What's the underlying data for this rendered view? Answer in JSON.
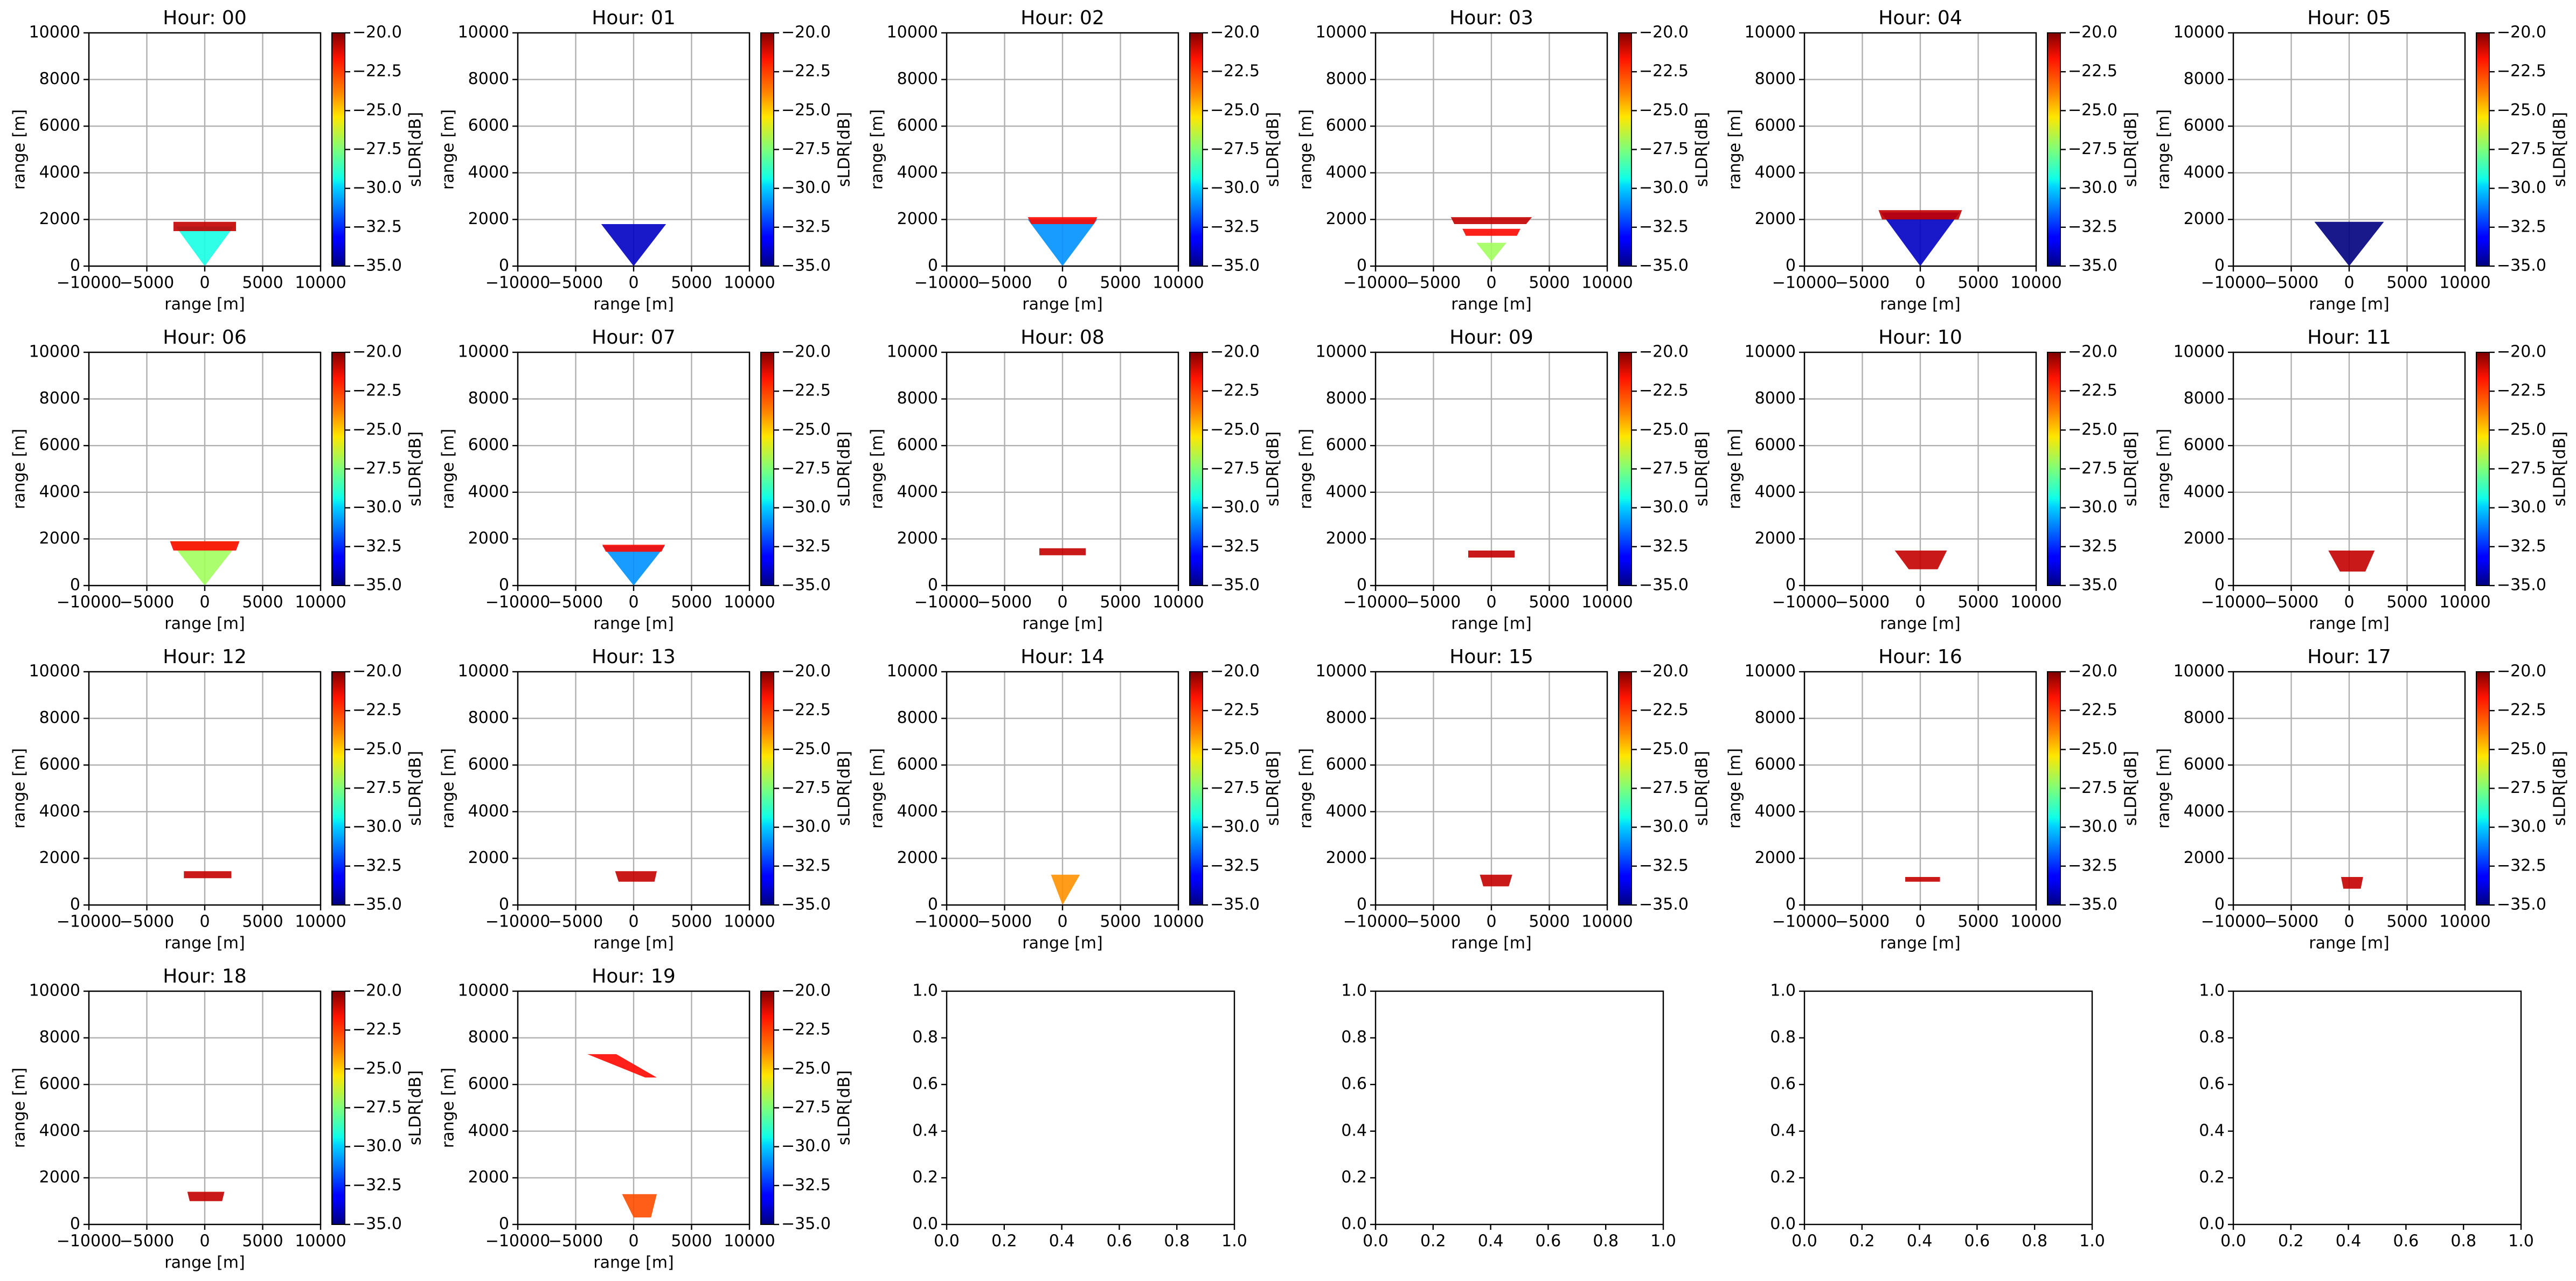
{
  "chart_data": {
    "type": "scan-grid",
    "xlabel": "range [m]",
    "ylabel": "range [m]",
    "colorbar_label": "sLDR[dB]",
    "colormap": "jet",
    "grid": true,
    "xlim": [
      -10000,
      10000
    ],
    "ylim": [
      0,
      10000
    ],
    "xticks": [
      {
        "value": -10000,
        "label": "−10000"
      },
      {
        "value": -5000,
        "label": "−5000"
      },
      0,
      5000,
      10000
    ],
    "yticks": [
      0,
      2000,
      4000,
      6000,
      8000,
      10000
    ],
    "clim": [
      -35,
      -20
    ],
    "cticks": [
      {
        "value": -20,
        "label": "−20.0"
      },
      {
        "value": -22.5,
        "label": "−22.5"
      },
      {
        "value": -25,
        "label": "−25.0"
      },
      {
        "value": -27.5,
        "label": "−27.5"
      },
      {
        "value": -30,
        "label": "−30.0"
      },
      {
        "value": -32.5,
        "label": "−32.5"
      },
      {
        "value": -35,
        "label": "−35.0"
      }
    ],
    "panels": [
      {
        "title": "Hour: 00",
        "patches": [
          {
            "x": [
              -2500,
              2500,
              0
            ],
            "y": [
              1700,
              1700,
              0
            ],
            "value": -29
          },
          {
            "x": [
              -2700,
              2700,
              2700,
              -2700
            ],
            "y": [
              1500,
              1500,
              1900,
              1900
            ],
            "value": -21
          }
        ]
      },
      {
        "title": "Hour: 01",
        "patches": [
          {
            "x": [
              -2800,
              2800,
              0
            ],
            "y": [
              1800,
              1800,
              0
            ],
            "value": -34
          }
        ]
      },
      {
        "title": "Hour: 02",
        "patches": [
          {
            "x": [
              -3000,
              3000,
              0
            ],
            "y": [
              2000,
              2000,
              0
            ],
            "value": -31
          },
          {
            "x": [
              -3000,
              3000,
              2700,
              -2700
            ],
            "y": [
              2100,
              2100,
              1800,
              1800
            ],
            "value": -22
          }
        ]
      },
      {
        "title": "Hour: 03",
        "patches": [
          {
            "x": [
              -3500,
              3500,
              3000,
              -3200
            ],
            "y": [
              2100,
              2100,
              1800,
              1800
            ],
            "value": -21
          },
          {
            "x": [
              -2500,
              2500,
              2200,
              -2200
            ],
            "y": [
              1600,
              1600,
              1300,
              1300
            ],
            "value": -22
          },
          {
            "x": [
              -1300,
              1300,
              0
            ],
            "y": [
              1000,
              1000,
              200
            ],
            "value": -27
          }
        ]
      },
      {
        "title": "Hour: 04",
        "patches": [
          {
            "x": [
              -3400,
              3400,
              0
            ],
            "y": [
              2300,
              2300,
              0
            ],
            "value": -34
          },
          {
            "x": [
              -3600,
              3600,
              3300,
              -3300
            ],
            "y": [
              2400,
              2400,
              2000,
              2000
            ],
            "value": -21
          }
        ]
      },
      {
        "title": "Hour: 05",
        "patches": [
          {
            "x": [
              -3000,
              3000,
              0
            ],
            "y": [
              1900,
              1900,
              0
            ],
            "value": -35
          }
        ]
      },
      {
        "title": "Hour: 06",
        "patches": [
          {
            "x": [
              -3000,
              3000,
              0
            ],
            "y": [
              1900,
              1900,
              0
            ],
            "value": -27
          },
          {
            "x": [
              -3000,
              3000,
              2700,
              -2700
            ],
            "y": [
              1900,
              1900,
              1500,
              1500
            ],
            "value": -22
          }
        ]
      },
      {
        "title": "Hour: 07",
        "patches": [
          {
            "x": [
              -2700,
              2700,
              0
            ],
            "y": [
              1700,
              1700,
              0
            ],
            "value": -31
          },
          {
            "x": [
              -2700,
              2700,
              2400,
              -2400
            ],
            "y": [
              1750,
              1750,
              1450,
              1450
            ],
            "value": -22
          }
        ]
      },
      {
        "title": "Hour: 08",
        "patches": [
          {
            "x": [
              -2000,
              2000,
              2000,
              -2000
            ],
            "y": [
              1300,
              1300,
              1600,
              1600
            ],
            "value": -21
          }
        ]
      },
      {
        "title": "Hour: 09",
        "patches": [
          {
            "x": [
              -2000,
              2000,
              2000,
              -2000
            ],
            "y": [
              1200,
              1200,
              1500,
              1500
            ],
            "value": -21
          }
        ]
      },
      {
        "title": "Hour: 10",
        "patches": [
          {
            "x": [
              -2200,
              2300,
              1500,
              -1000
            ],
            "y": [
              1500,
              1500,
              700,
              700
            ],
            "value": -21
          }
        ]
      },
      {
        "title": "Hour: 11",
        "patches": [
          {
            "x": [
              -1800,
              2200,
              1400,
              -800
            ],
            "y": [
              1500,
              1500,
              600,
              600
            ],
            "value": -21
          }
        ]
      },
      {
        "title": "Hour: 12",
        "patches": [
          {
            "x": [
              -1800,
              2300,
              2300,
              -1800
            ],
            "y": [
              1150,
              1150,
              1450,
              1450
            ],
            "value": -21
          }
        ]
      },
      {
        "title": "Hour: 13",
        "patches": [
          {
            "x": [
              -1600,
              2000,
              1800,
              -1300
            ],
            "y": [
              1450,
              1450,
              1000,
              1000
            ],
            "value": -21
          }
        ]
      },
      {
        "title": "Hour: 14",
        "patches": [
          {
            "x": [
              -1000,
              1500,
              0
            ],
            "y": [
              1300,
              1300,
              0
            ],
            "value": -24
          }
        ]
      },
      {
        "title": "Hour: 15",
        "patches": [
          {
            "x": [
              -1000,
              1800,
              1500,
              -700
            ],
            "y": [
              1300,
              1300,
              800,
              800
            ],
            "value": -21
          }
        ]
      },
      {
        "title": "Hour: 16",
        "patches": [
          {
            "x": [
              -1300,
              1700,
              1700,
              -1300
            ],
            "y": [
              1000,
              1000,
              1200,
              1200
            ],
            "value": -21
          }
        ]
      },
      {
        "title": "Hour: 17",
        "patches": [
          {
            "x": [
              -700,
              1200,
              1000,
              -500
            ],
            "y": [
              1200,
              1200,
              700,
              700
            ],
            "value": -21
          }
        ]
      },
      {
        "title": "Hour: 18",
        "patches": [
          {
            "x": [
              -1500,
              1700,
              1500,
              -1300
            ],
            "y": [
              1400,
              1400,
              1000,
              1000
            ],
            "value": -21
          }
        ]
      },
      {
        "title": "Hour: 19",
        "patches": [
          {
            "x": [
              -4000,
              -1500,
              2000,
              1000
            ],
            "y": [
              7300,
              7300,
              6300,
              6300
            ],
            "value": -22
          },
          {
            "x": [
              -1000,
              2000,
              1500,
              0
            ],
            "y": [
              1300,
              1300,
              300,
              300
            ],
            "value": -23
          }
        ]
      }
    ],
    "empty_panels": [
      {
        "xlim": [
          0,
          1
        ],
        "ylim": [
          0,
          1
        ],
        "xticks": [
          {
            "value": 0,
            "label": "0.0"
          },
          {
            "value": 0.2,
            "label": "0.2"
          },
          {
            "value": 0.4,
            "label": "0.4"
          },
          {
            "value": 0.6,
            "label": "0.6"
          },
          {
            "value": 0.8,
            "label": "0.8"
          },
          {
            "value": 1,
            "label": "1.0"
          }
        ],
        "yticks": [
          {
            "value": 0,
            "label": "0.0"
          },
          {
            "value": 0.2,
            "label": "0.2"
          },
          {
            "value": 0.4,
            "label": "0.4"
          },
          {
            "value": 0.6,
            "label": "0.6"
          },
          {
            "value": 0.8,
            "label": "0.8"
          },
          {
            "value": 1,
            "label": "1.0"
          }
        ]
      },
      {
        "xlim": [
          0,
          1
        ],
        "ylim": [
          0,
          1
        ],
        "xticks": [
          {
            "value": 0,
            "label": "0.0"
          },
          {
            "value": 0.2,
            "label": "0.2"
          },
          {
            "value": 0.4,
            "label": "0.4"
          },
          {
            "value": 0.6,
            "label": "0.6"
          },
          {
            "value": 0.8,
            "label": "0.8"
          },
          {
            "value": 1,
            "label": "1.0"
          }
        ],
        "yticks": [
          {
            "value": 0,
            "label": "0.0"
          },
          {
            "value": 0.2,
            "label": "0.2"
          },
          {
            "value": 0.4,
            "label": "0.4"
          },
          {
            "value": 0.6,
            "label": "0.6"
          },
          {
            "value": 0.8,
            "label": "0.8"
          },
          {
            "value": 1,
            "label": "1.0"
          }
        ]
      },
      {
        "xlim": [
          0,
          1
        ],
        "ylim": [
          0,
          1
        ],
        "xticks": [
          {
            "value": 0,
            "label": "0.0"
          },
          {
            "value": 0.2,
            "label": "0.2"
          },
          {
            "value": 0.4,
            "label": "0.4"
          },
          {
            "value": 0.6,
            "label": "0.6"
          },
          {
            "value": 0.8,
            "label": "0.8"
          },
          {
            "value": 1,
            "label": "1.0"
          }
        ],
        "yticks": [
          {
            "value": 0,
            "label": "0.0"
          },
          {
            "value": 0.2,
            "label": "0.2"
          },
          {
            "value": 0.4,
            "label": "0.4"
          },
          {
            "value": 0.6,
            "label": "0.6"
          },
          {
            "value": 0.8,
            "label": "0.8"
          },
          {
            "value": 1,
            "label": "1.0"
          }
        ]
      },
      {
        "xlim": [
          0,
          1
        ],
        "ylim": [
          0,
          1
        ],
        "xticks": [
          {
            "value": 0,
            "label": "0.0"
          },
          {
            "value": 0.2,
            "label": "0.2"
          },
          {
            "value": 0.4,
            "label": "0.4"
          },
          {
            "value": 0.6,
            "label": "0.6"
          },
          {
            "value": 0.8,
            "label": "0.8"
          },
          {
            "value": 1,
            "label": "1.0"
          }
        ],
        "yticks": [
          {
            "value": 0,
            "label": "0.0"
          },
          {
            "value": 0.2,
            "label": "0.2"
          },
          {
            "value": 0.4,
            "label": "0.4"
          },
          {
            "value": 0.6,
            "label": "0.6"
          },
          {
            "value": 0.8,
            "label": "0.8"
          },
          {
            "value": 1,
            "label": "1.0"
          }
        ]
      }
    ]
  }
}
